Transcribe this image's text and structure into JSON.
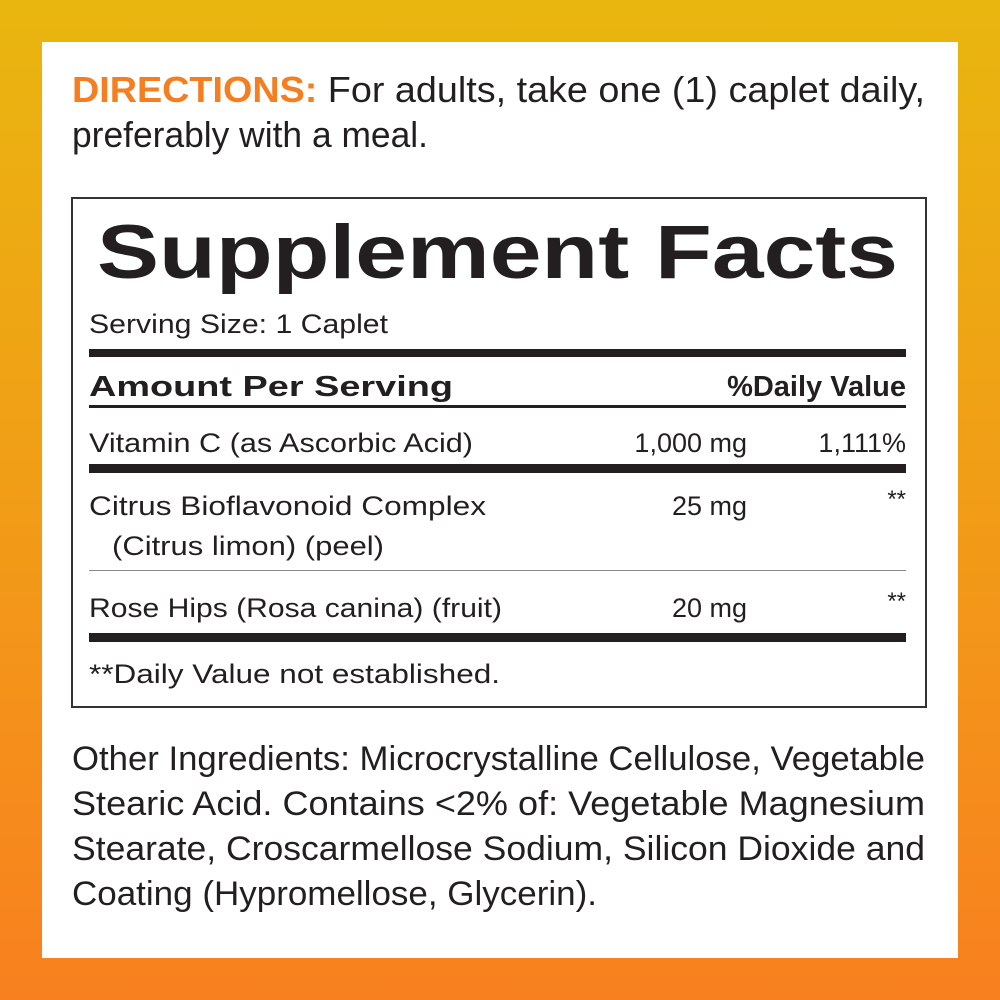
{
  "directions": {
    "label": "DIRECTIONS:",
    "text_line1": " For adults, take one (1) caplet daily,",
    "text_line2": "preferably with a meal."
  },
  "facts": {
    "title": "Supplement Facts",
    "serving_size": "Serving Size: 1 Caplet",
    "header_amount": "Amount Per Serving",
    "header_dv": "%Daily Value",
    "rows": [
      {
        "name": "Vitamin C (as Ascorbic Acid)",
        "name2": "",
        "amount": "1,000 mg",
        "dv": "1,111%"
      },
      {
        "name": "Citrus Bioflavonoid Complex",
        "name2": "(Citrus limon) (peel)",
        "amount": "25 mg",
        "dv": "**"
      },
      {
        "name": "Rose Hips (Rosa canina) (fruit)",
        "name2": "",
        "amount": "20 mg",
        "dv": "**"
      }
    ],
    "footnote": "**Daily Value not established."
  },
  "other_ingredients": {
    "lines": [
      "Other Ingredients: Microcrystalline Cellulose, Vegetable",
      "Stearic Acid. Contains <2% of: Vegetable Magnesium",
      "Stearate, Croscarmellose Sodium, Silicon Dioxide and",
      "Coating (Hypromellose, Glycerin)."
    ]
  },
  "colors": {
    "accent": "#F47E20",
    "text": "#231f20",
    "bg_top": "#E9B60F",
    "bg_bottom": "#F8801F"
  }
}
